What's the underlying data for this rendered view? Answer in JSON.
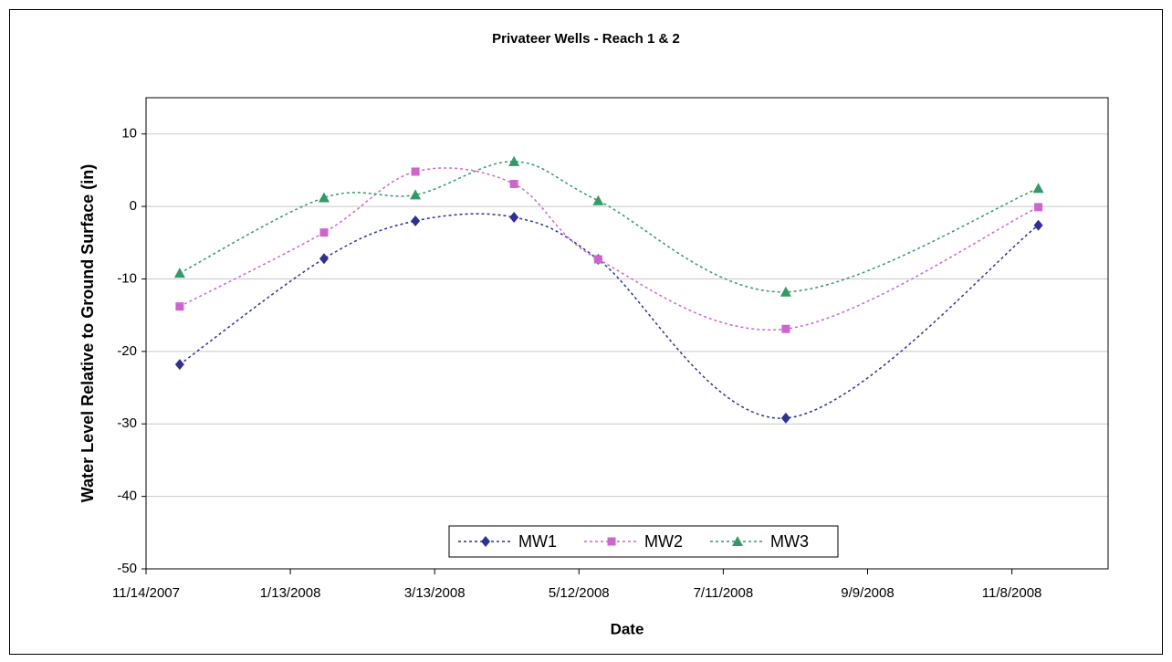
{
  "chart_data": {
    "type": "line",
    "title": "Privateer Wells - Reach 1 & 2",
    "x_label": "Date",
    "y_label": "Water Level Relative to Ground Surface (in)",
    "x": [
      "2007-11-28",
      "2008-01-27",
      "2008-03-05",
      "2008-04-15",
      "2008-05-20",
      "2008-08-06",
      "2008-11-19"
    ],
    "series": [
      {
        "name": "MW1",
        "color": "#2e3192",
        "marker": "diamond",
        "values": [
          -21.8,
          -7.2,
          -2,
          -1.5,
          -7.3,
          -29.2,
          -2.6
        ]
      },
      {
        "name": "MW2",
        "color": "#cc66cc",
        "marker": "square",
        "values": [
          -13.8,
          -3.6,
          4.8,
          3.1,
          -7.3,
          -16.9,
          -0.1
        ]
      },
      {
        "name": "MW3",
        "color": "#339966",
        "marker": "triangle",
        "values": [
          -9.2,
          1.2,
          1.6,
          6.2,
          0.8,
          -11.8,
          2.5
        ]
      }
    ],
    "xlim": [
      "2007-11-14",
      "2008-12-18"
    ],
    "xticks": [
      {
        "value": "2007-11-14",
        "label": "11/14/2007"
      },
      {
        "value": "2008-01-13",
        "label": "1/13/2008"
      },
      {
        "value": "2008-03-13",
        "label": "3/13/2008"
      },
      {
        "value": "2008-05-12",
        "label": "5/12/2008"
      },
      {
        "value": "2008-07-11",
        "label": "7/11/2008"
      },
      {
        "value": "2008-09-09",
        "label": "9/9/2008"
      },
      {
        "value": "2008-11-08",
        "label": "11/8/2008"
      }
    ],
    "ylim": [
      -50,
      15
    ],
    "yticks": [
      -50,
      -40,
      -30,
      -20,
      -10,
      0,
      10
    ],
    "grid": true,
    "smooth": true,
    "legend": "bottom"
  }
}
